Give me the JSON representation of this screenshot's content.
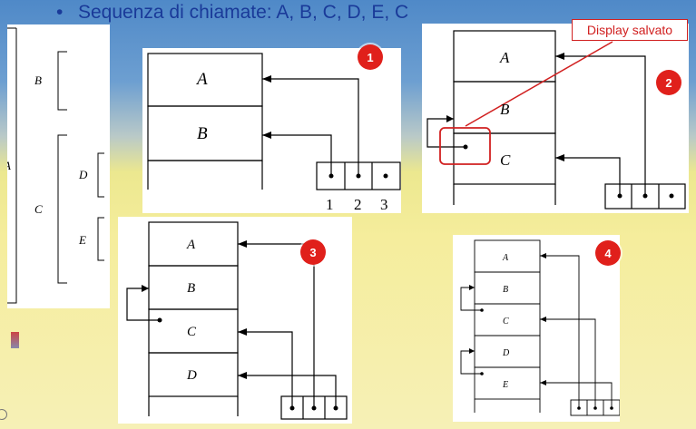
{
  "slide": {
    "bullet": "•",
    "title": "Sequenza di chiamate: A, B, C, D, E, C",
    "callout": "Display salvato",
    "accent": "#e0201b"
  },
  "tree": {
    "root": "A",
    "children": [
      "B",
      "C"
    ],
    "grandchildren": [
      "D",
      "E"
    ]
  },
  "diagrams": [
    {
      "badge": "1",
      "frames": [
        "A",
        "B"
      ],
      "display_labels": [
        "1",
        "2",
        "3"
      ]
    },
    {
      "badge": "2",
      "frames": [
        "A",
        "B",
        "C"
      ]
    },
    {
      "badge": "3",
      "frames": [
        "A",
        "B",
        "C",
        "D"
      ]
    },
    {
      "badge": "4",
      "frames": [
        "A",
        "B",
        "C",
        "D",
        "E"
      ]
    }
  ]
}
